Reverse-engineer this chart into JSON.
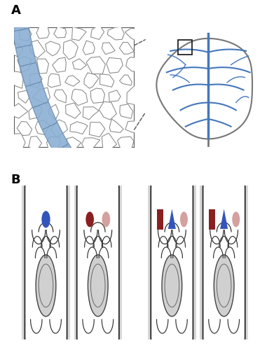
{
  "fig_width": 3.91,
  "fig_height": 5.0,
  "dpi": 100,
  "bg_color": "#ffffff",
  "label_A": "A",
  "label_B": "B",
  "vascular_fill": "#8BAFD4",
  "vascular_edge": "#6688aa",
  "leaf_vein_color": "#4477bb",
  "leaf_outline_color": "#777777",
  "pin5_color": "#8B2020",
  "pin6_color": "#3355bb",
  "pin8_color": "#D4A0A0",
  "cell_panel_bg": "#d8d8d8",
  "cell_outline": "#333333",
  "nucleus_fill": "#cccccc",
  "box_outline": "#222222"
}
